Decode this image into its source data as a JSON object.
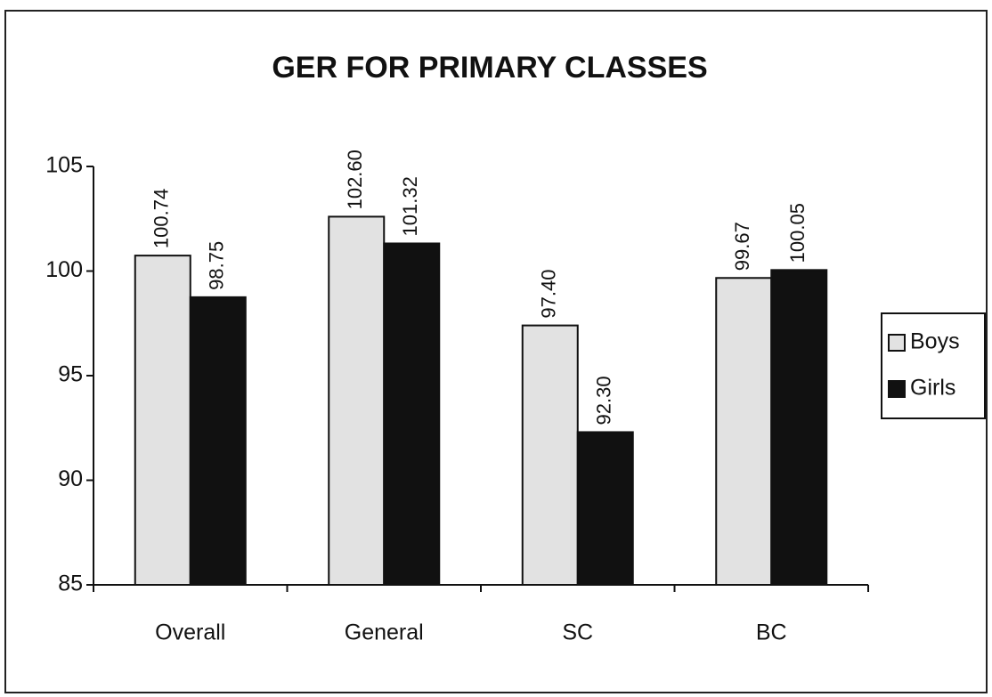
{
  "chart_data": {
    "type": "bar",
    "title": "GER FOR PRIMARY CLASSES",
    "categories": [
      "Overall",
      "General",
      "SC",
      "BC"
    ],
    "series": [
      {
        "name": "Boys",
        "color": "#e2e2e2",
        "values": [
          100.74,
          102.6,
          97.4,
          99.67
        ],
        "value_labels": [
          "100.74",
          "102.60",
          "97.40",
          "99.67"
        ]
      },
      {
        "name": "Girls",
        "color": "#111111",
        "values": [
          98.75,
          101.32,
          92.3,
          100.05
        ],
        "value_labels": [
          "98.75",
          "101.32",
          "92.30",
          "100.05"
        ]
      }
    ],
    "ylim": [
      85,
      105
    ],
    "yticks": [
      85,
      90,
      95,
      100,
      105
    ],
    "legend": "right"
  }
}
